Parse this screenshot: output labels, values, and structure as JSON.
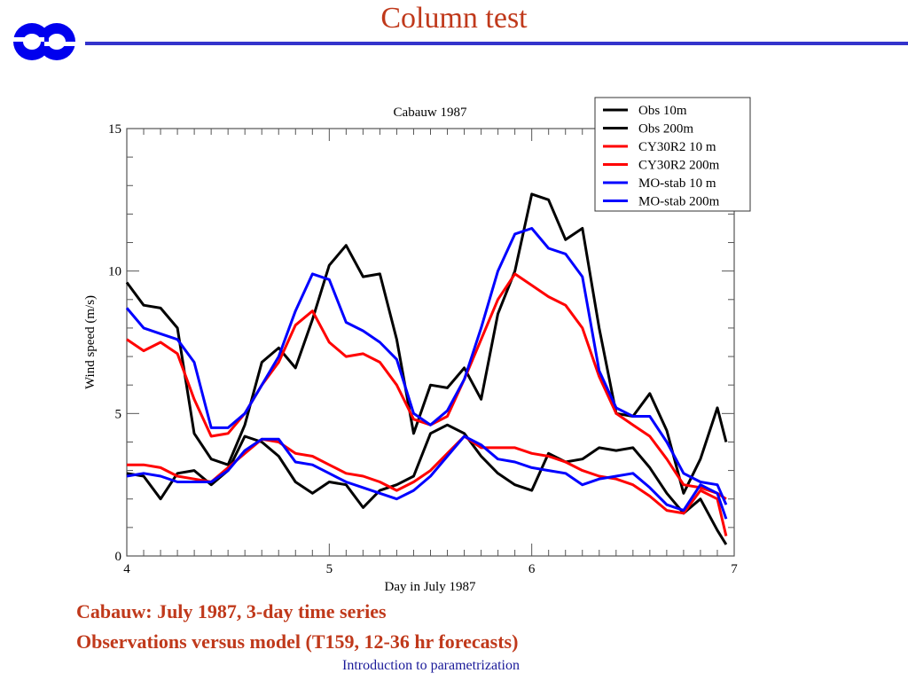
{
  "slide": {
    "title": "Column test",
    "captions": [
      "Cabauw: July 1987, 3-day time series",
      "Observations versus model (T159, 12-36 hr forecasts)"
    ],
    "footer": "Introduction to parametrization",
    "colors": {
      "title": "#c0391b",
      "rule": "#3333cc",
      "footer": "#1a1a99",
      "logo": "#0000ee"
    }
  },
  "chart_data": {
    "type": "line",
    "title": "Cabauw 1987",
    "xlabel": "Day in July 1987",
    "ylabel": "Wind speed (m/s)",
    "xlim": [
      4,
      7
    ],
    "ylim": [
      0,
      15
    ],
    "xticks": [
      4,
      5,
      6,
      7
    ],
    "yticks": [
      0,
      5,
      10,
      15
    ],
    "x_minor_step": 0.0833,
    "y_minor_step": 1,
    "grid": false,
    "legend_position": "top-right",
    "x": [
      4.0,
      4.083,
      4.167,
      4.25,
      4.333,
      4.417,
      4.5,
      4.583,
      4.667,
      4.75,
      4.833,
      4.917,
      5.0,
      5.083,
      5.167,
      5.25,
      5.333,
      5.417,
      5.5,
      5.583,
      5.667,
      5.75,
      5.833,
      5.917,
      6.0,
      6.083,
      6.167,
      6.25,
      6.333,
      6.417,
      6.5,
      6.583,
      6.667,
      6.75,
      6.833,
      6.917,
      6.96
    ],
    "series": [
      {
        "name": "Obs 10m",
        "color": "#000000",
        "values": [
          2.9,
          2.8,
          2.0,
          2.9,
          3.0,
          2.5,
          3.0,
          4.2,
          4.0,
          3.5,
          2.6,
          2.2,
          2.6,
          2.5,
          1.7,
          2.3,
          2.5,
          2.8,
          4.3,
          4.6,
          4.3,
          3.5,
          2.9,
          2.5,
          2.3,
          3.6,
          3.3,
          3.4,
          3.8,
          3.7,
          3.8,
          3.1,
          2.2,
          1.5,
          2.0,
          0.9,
          0.4
        ]
      },
      {
        "name": "Obs 200m",
        "color": "#000000",
        "values": [
          9.6,
          8.8,
          8.7,
          8.0,
          4.3,
          3.4,
          3.2,
          4.6,
          6.8,
          7.3,
          6.6,
          8.3,
          10.2,
          10.9,
          9.8,
          9.9,
          7.6,
          4.3,
          6.0,
          5.9,
          6.6,
          5.5,
          8.5,
          10.0,
          12.7,
          12.5,
          11.1,
          11.5,
          8.0,
          5.0,
          4.9,
          5.7,
          4.4,
          2.2,
          3.4,
          5.2,
          4.0
        ]
      },
      {
        "name": "CY30R2 10 m",
        "color": "#ff0000",
        "values": [
          3.2,
          3.2,
          3.1,
          2.8,
          2.7,
          2.6,
          3.1,
          3.6,
          4.1,
          4.0,
          3.6,
          3.5,
          3.2,
          2.9,
          2.8,
          2.6,
          2.3,
          2.6,
          3.0,
          3.6,
          4.2,
          3.8,
          3.8,
          3.8,
          3.6,
          3.5,
          3.3,
          3.0,
          2.8,
          2.7,
          2.5,
          2.1,
          1.6,
          1.5,
          2.3,
          2.0,
          0.7
        ]
      },
      {
        "name": "CY30R2 200m",
        "color": "#ff0000",
        "values": [
          7.6,
          7.2,
          7.5,
          7.1,
          5.5,
          4.2,
          4.3,
          5.0,
          6.0,
          6.8,
          8.1,
          8.6,
          7.5,
          7.0,
          7.1,
          6.8,
          6.0,
          4.8,
          4.6,
          4.9,
          6.2,
          7.6,
          9.0,
          9.9,
          9.5,
          9.1,
          8.8,
          8.0,
          6.3,
          5.0,
          4.6,
          4.2,
          3.4,
          2.5,
          2.4,
          2.2,
          2.0
        ]
      },
      {
        "name": "MO-stab 10 m",
        "color": "#0000ff",
        "values": [
          2.8,
          2.9,
          2.8,
          2.6,
          2.6,
          2.6,
          3.0,
          3.7,
          4.1,
          4.1,
          3.3,
          3.2,
          2.9,
          2.6,
          2.4,
          2.2,
          2.0,
          2.3,
          2.8,
          3.5,
          4.2,
          3.9,
          3.4,
          3.3,
          3.1,
          3.0,
          2.9,
          2.5,
          2.7,
          2.8,
          2.9,
          2.4,
          1.8,
          1.6,
          2.5,
          2.2,
          1.3
        ]
      },
      {
        "name": "MO-stab 200m",
        "color": "#0000ff",
        "values": [
          8.7,
          8.0,
          7.8,
          7.6,
          6.8,
          4.5,
          4.5,
          5.0,
          6.0,
          7.0,
          8.6,
          9.9,
          9.7,
          8.2,
          7.9,
          7.5,
          6.9,
          5.0,
          4.6,
          5.1,
          6.2,
          8.0,
          10.0,
          11.3,
          11.5,
          10.8,
          10.6,
          9.8,
          6.5,
          5.2,
          4.9,
          4.9,
          4.0,
          2.9,
          2.6,
          2.5,
          1.8
        ]
      }
    ]
  }
}
